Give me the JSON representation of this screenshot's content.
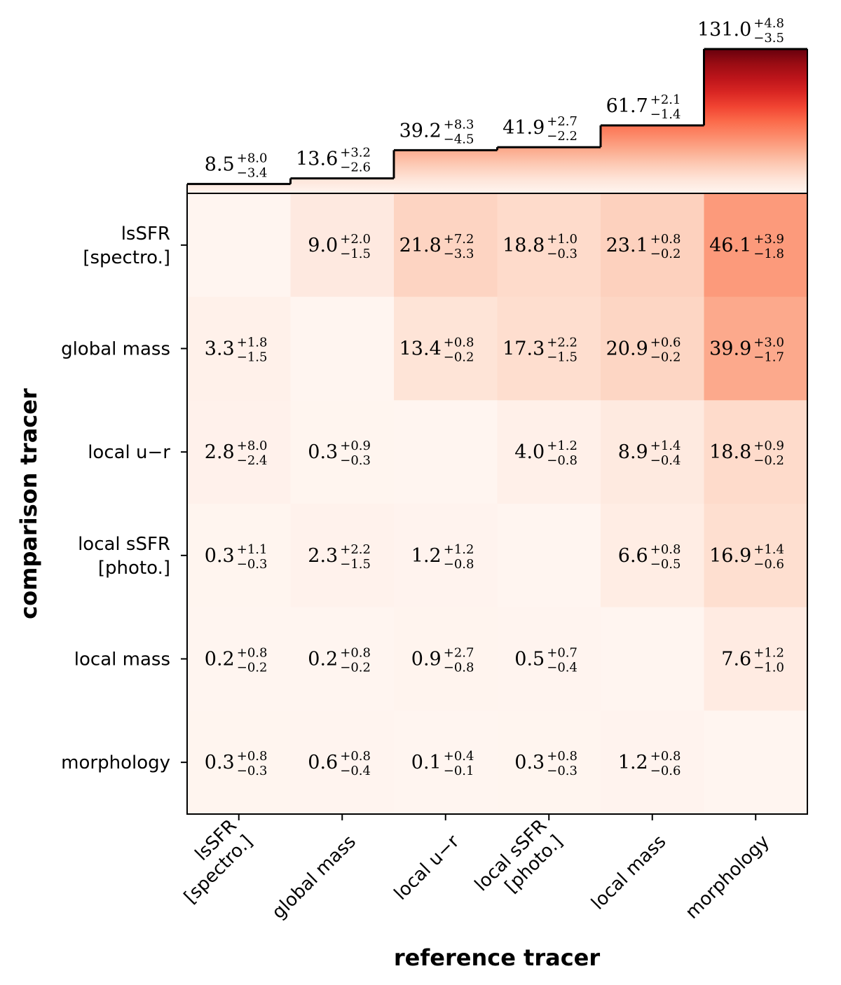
{
  "chart_data": {
    "type": "heatmap",
    "xlabel": "reference tracer",
    "ylabel": "comparison tracer",
    "x_tick_labels": [
      [
        "lsSFR",
        "[spectro.]"
      ],
      [
        "global mass"
      ],
      [
        "local u−r"
      ],
      [
        "local sSFR",
        "[photo.]"
      ],
      [
        "local mass"
      ],
      [
        "morphology"
      ]
    ],
    "y_tick_labels": [
      [
        "lsSFR",
        "[spectro.]"
      ],
      [
        "global mass"
      ],
      [
        "local u−r"
      ],
      [
        "local sSFR",
        "[photo.]"
      ],
      [
        "local mass"
      ],
      [
        "morphology"
      ]
    ],
    "top_bars": [
      {
        "value": "8.5",
        "plus": "+8.0",
        "minus": "−3.4",
        "v": 8.5
      },
      {
        "value": "13.6",
        "plus": "+3.2",
        "minus": "−2.6",
        "v": 13.6
      },
      {
        "value": "39.2",
        "plus": "+8.3",
        "minus": "−4.5",
        "v": 39.2
      },
      {
        "value": "41.9",
        "plus": "+2.7",
        "minus": "−2.2",
        "v": 41.9
      },
      {
        "value": "61.7",
        "plus": "+2.1",
        "minus": "−1.4",
        "v": 61.7
      },
      {
        "value": "131.0",
        "plus": "+4.8",
        "minus": "−3.5",
        "v": 131.0
      }
    ],
    "top_ylim": [
      0,
      131.0
    ],
    "cells": [
      [
        null,
        {
          "value": "9.0",
          "plus": "+2.0",
          "minus": "−1.5",
          "v": 9.0
        },
        {
          "value": "21.8",
          "plus": "+7.2",
          "minus": "−3.3",
          "v": 21.8
        },
        {
          "value": "18.8",
          "plus": "+1.0",
          "minus": "−0.3",
          "v": 18.8
        },
        {
          "value": "23.1",
          "plus": "+0.8",
          "minus": "−0.2",
          "v": 23.1
        },
        {
          "value": "46.1",
          "plus": "+3.9",
          "minus": "−1.8",
          "v": 46.1
        }
      ],
      [
        {
          "value": "3.3",
          "plus": "+1.8",
          "minus": "−1.5",
          "v": 3.3
        },
        null,
        {
          "value": "13.4",
          "plus": "+0.8",
          "minus": "−0.2",
          "v": 13.4
        },
        {
          "value": "17.3",
          "plus": "+2.2",
          "minus": "−1.5",
          "v": 17.3
        },
        {
          "value": "20.9",
          "plus": "+0.6",
          "minus": "−0.2",
          "v": 20.9
        },
        {
          "value": "39.9",
          "plus": "+3.0",
          "minus": "−1.7",
          "v": 39.9
        }
      ],
      [
        {
          "value": "2.8",
          "plus": "+8.0",
          "minus": "−2.4",
          "v": 2.8
        },
        {
          "value": "0.3",
          "plus": "+0.9",
          "minus": "−0.3",
          "v": 0.3
        },
        null,
        {
          "value": "4.0",
          "plus": "+1.2",
          "minus": "−0.8",
          "v": 4.0
        },
        {
          "value": "8.9",
          "plus": "+1.4",
          "minus": "−0.4",
          "v": 8.9
        },
        {
          "value": "18.8",
          "plus": "+0.9",
          "minus": "−0.2",
          "v": 18.8
        }
      ],
      [
        {
          "value": "0.3",
          "plus": "+1.1",
          "minus": "−0.3",
          "v": 0.3
        },
        {
          "value": "2.3",
          "plus": "+2.2",
          "minus": "−1.5",
          "v": 2.3
        },
        {
          "value": "1.2",
          "plus": "+1.2",
          "minus": "−0.8",
          "v": 1.2
        },
        null,
        {
          "value": "6.6",
          "plus": "+0.8",
          "minus": "−0.5",
          "v": 6.6
        },
        {
          "value": "16.9",
          "plus": "+1.4",
          "minus": "−0.6",
          "v": 16.9
        }
      ],
      [
        {
          "value": "0.2",
          "plus": "+0.8",
          "minus": "−0.2",
          "v": 0.2
        },
        {
          "value": "0.2",
          "plus": "+0.8",
          "minus": "−0.2",
          "v": 0.2
        },
        {
          "value": "0.9",
          "plus": "+2.7",
          "minus": "−0.8",
          "v": 0.9
        },
        {
          "value": "0.5",
          "plus": "+0.7",
          "minus": "−0.4",
          "v": 0.5
        },
        null,
        {
          "value": "7.6",
          "plus": "+1.2",
          "minus": "−1.0",
          "v": 7.6
        }
      ],
      [
        {
          "value": "0.3",
          "plus": "+0.8",
          "minus": "−0.3",
          "v": 0.3
        },
        {
          "value": "0.6",
          "plus": "+0.8",
          "minus": "−0.4",
          "v": 0.6
        },
        {
          "value": "0.1",
          "plus": "+0.4",
          "minus": "−0.1",
          "v": 0.1
        },
        {
          "value": "0.3",
          "plus": "+0.8",
          "minus": "−0.3",
          "v": 0.3
        },
        {
          "value": "1.2",
          "plus": "+0.8",
          "minus": "−0.6",
          "v": 1.2
        },
        null
      ]
    ],
    "colormap": "Reds",
    "color_max": 131.0
  }
}
